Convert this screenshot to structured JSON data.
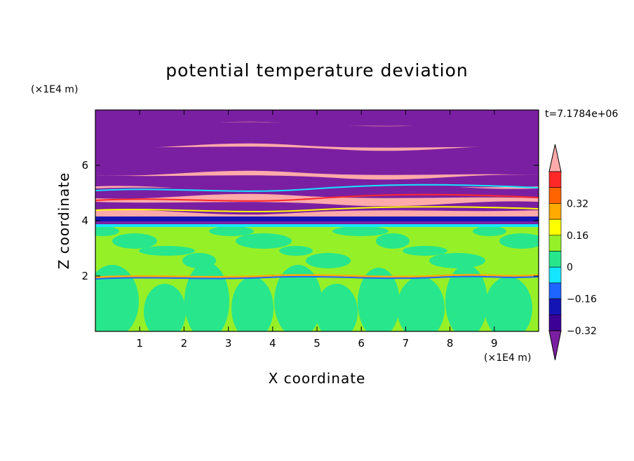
{
  "chart_data": {
    "type": "heatmap",
    "title": "potential temperature deviation",
    "xlabel": "X coordinate",
    "ylabel": "Z coordinate",
    "x_unit": "(×1E4 m)",
    "y_unit": "(×1E4 m)",
    "time_label": "t=7.1784e+06",
    "xlim": [
      0,
      10
    ],
    "ylim": [
      0,
      8
    ],
    "x_ticks": [
      "1",
      "2",
      "3",
      "4",
      "5",
      "6",
      "7",
      "8",
      "9"
    ],
    "y_ticks": [
      "2",
      "4",
      "6"
    ],
    "colorbar": {
      "levels": [
        -0.48,
        -0.4,
        -0.32,
        -0.24,
        -0.16,
        -0.08,
        0,
        0.08,
        0.16,
        0.24,
        0.32,
        0.4,
        0.48
      ],
      "tick_labels": [
        "0.32",
        "0.16",
        "0",
        "−0.16",
        "−0.32"
      ],
      "colors_low_to_high": [
        "#7b1fa2",
        "#3d0096",
        "#1414b4",
        "#1e64ff",
        "#14e6ff",
        "#28e68c",
        "#96f028",
        "#ffff00",
        "#ffaa00",
        "#ff6400",
        "#ff2828",
        "#ffaaaa"
      ],
      "extend": "both"
    },
    "regions": {
      "upper_layer": "alternating pink (high) and purple (low) bands, z ≈ 3.9–8",
      "lower_layer": "green / light green mixed, z ≈ 0–3.9, thin warm/cold line near z ≈ 2"
    }
  }
}
